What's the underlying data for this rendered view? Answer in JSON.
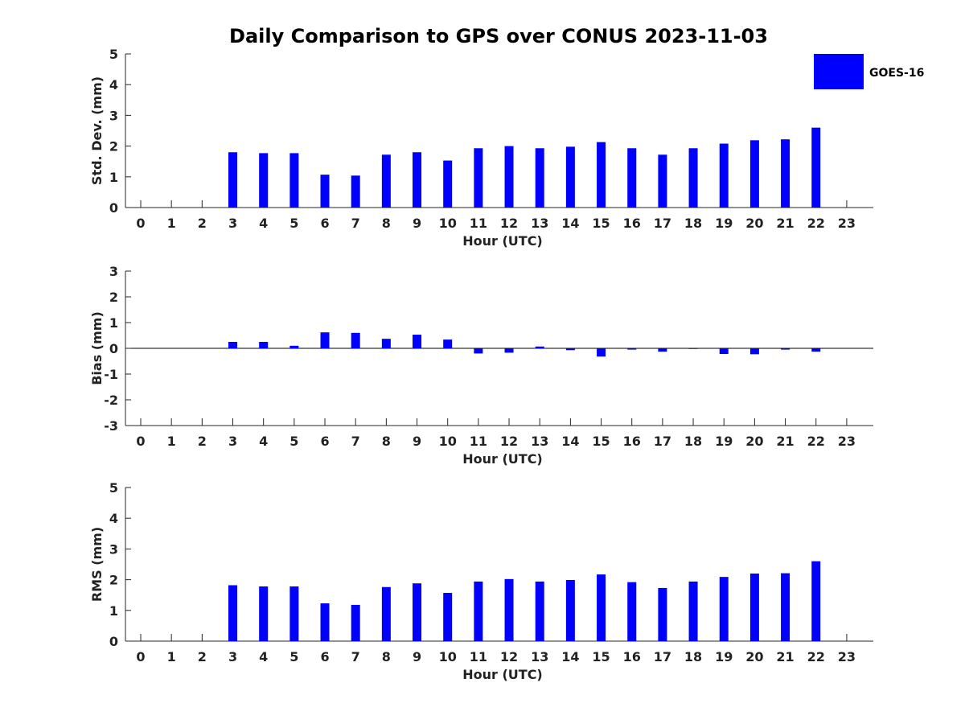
{
  "figure": {
    "title": "Daily Comparison to GPS over CONUS 2023-11-03",
    "bar_color": "#0000ff",
    "axis_color": "#262626"
  },
  "legend": {
    "label": "GOES-16",
    "color": "#0000ff",
    "position": "top-right"
  },
  "chart_data": [
    {
      "type": "bar",
      "name": "std-dev",
      "title": "Daily Comparison to GPS over CONUS 2023-11-03",
      "xlabel": "Hour (UTC)",
      "ylabel": "Std. Dev. (mm)",
      "x": [
        0,
        1,
        2,
        3,
        4,
        5,
        6,
        7,
        8,
        9,
        10,
        11,
        12,
        13,
        14,
        15,
        16,
        17,
        18,
        19,
        20,
        21,
        22,
        23
      ],
      "xticks": [
        "0",
        "1",
        "2",
        "3",
        "4",
        "5",
        "6",
        "7",
        "8",
        "9",
        "10",
        "11",
        "12",
        "13",
        "14",
        "15",
        "16",
        "17",
        "18",
        "19",
        "20",
        "21",
        "22",
        "23"
      ],
      "ylim": [
        0,
        5
      ],
      "yticks": [
        "0",
        "1",
        "2",
        "3",
        "4",
        "5"
      ],
      "series": [
        {
          "name": "GOES-16",
          "values": [
            null,
            null,
            null,
            1.8,
            1.77,
            1.77,
            1.07,
            1.04,
            1.72,
            1.8,
            1.53,
            1.93,
            2.0,
            1.93,
            1.98,
            2.13,
            1.93,
            1.72,
            1.93,
            2.08,
            2.19,
            2.22,
            2.6,
            null
          ]
        }
      ]
    },
    {
      "type": "bar",
      "name": "bias",
      "xlabel": "Hour (UTC)",
      "ylabel": "Bias (mm)",
      "x": [
        0,
        1,
        2,
        3,
        4,
        5,
        6,
        7,
        8,
        9,
        10,
        11,
        12,
        13,
        14,
        15,
        16,
        17,
        18,
        19,
        20,
        21,
        22,
        23
      ],
      "xticks": [
        "0",
        "1",
        "2",
        "3",
        "4",
        "5",
        "6",
        "7",
        "8",
        "9",
        "10",
        "11",
        "12",
        "13",
        "14",
        "15",
        "16",
        "17",
        "18",
        "19",
        "20",
        "21",
        "22",
        "23"
      ],
      "ylim": [
        -3,
        3
      ],
      "yticks": [
        "-3",
        "-2",
        "-1",
        "0",
        "1",
        "2",
        "3"
      ],
      "zero_line": true,
      "series": [
        {
          "name": "GOES-16",
          "values": [
            null,
            null,
            null,
            0.25,
            0.25,
            0.1,
            0.62,
            0.6,
            0.37,
            0.53,
            0.34,
            -0.2,
            -0.17,
            0.07,
            -0.07,
            -0.32,
            -0.05,
            -0.13,
            -0.02,
            -0.22,
            -0.23,
            -0.05,
            -0.13,
            null
          ]
        }
      ]
    },
    {
      "type": "bar",
      "name": "rms",
      "xlabel": "Hour (UTC)",
      "ylabel": "RMS (mm)",
      "x": [
        0,
        1,
        2,
        3,
        4,
        5,
        6,
        7,
        8,
        9,
        10,
        11,
        12,
        13,
        14,
        15,
        16,
        17,
        18,
        19,
        20,
        21,
        22,
        23
      ],
      "xticks": [
        "0",
        "1",
        "2",
        "3",
        "4",
        "5",
        "6",
        "7",
        "8",
        "9",
        "10",
        "11",
        "12",
        "13",
        "14",
        "15",
        "16",
        "17",
        "18",
        "19",
        "20",
        "21",
        "22",
        "23"
      ],
      "ylim": [
        0,
        5
      ],
      "yticks": [
        "0",
        "1",
        "2",
        "3",
        "4",
        "5"
      ],
      "series": [
        {
          "name": "GOES-16",
          "values": [
            null,
            null,
            null,
            1.82,
            1.78,
            1.78,
            1.23,
            1.18,
            1.76,
            1.88,
            1.57,
            1.94,
            2.02,
            1.94,
            1.99,
            2.17,
            1.92,
            1.73,
            1.94,
            2.09,
            2.2,
            2.21,
            2.6,
            null
          ]
        }
      ]
    }
  ]
}
